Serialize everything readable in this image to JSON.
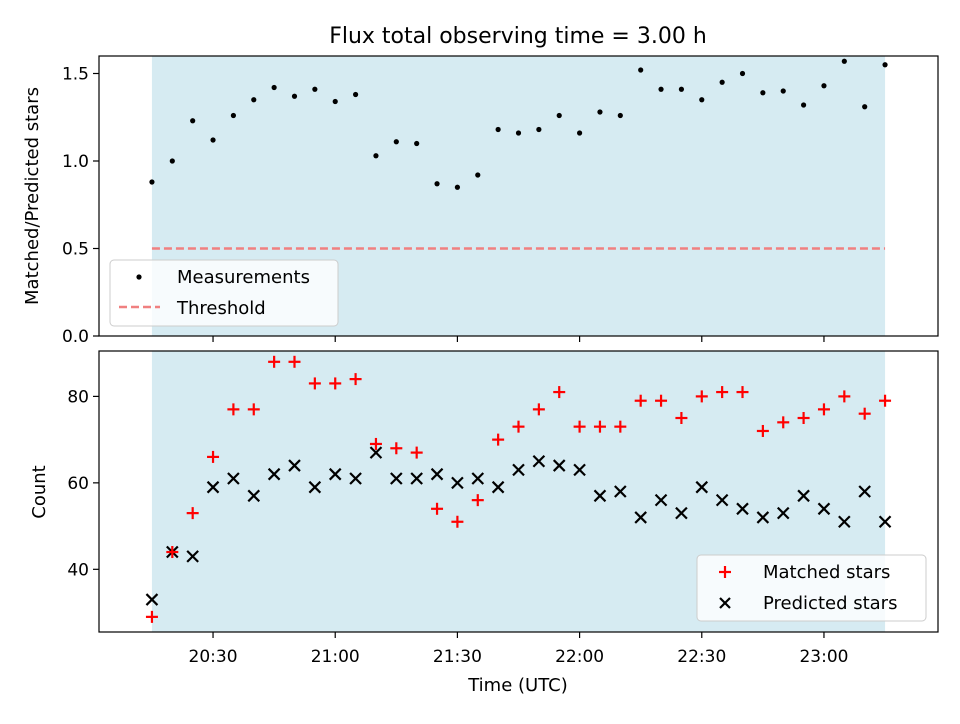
{
  "title": "Flux total observing time = 3.00 h",
  "xlabel": "Time (UTC)",
  "x_ticks": [
    "20:30",
    "21:00",
    "21:30",
    "22:00",
    "22:30",
    "23:00"
  ],
  "colors": {
    "shade": "#add8e6",
    "measurement": "#000000",
    "threshold": "#f08080",
    "matched": "#ff0000",
    "predicted": "#000000"
  },
  "chart_data": [
    {
      "type": "scatter",
      "ylabel": "Matched/Predicted stars",
      "ylim": [
        0.0,
        1.6
      ],
      "y_ticks": [
        "0.0",
        "0.5",
        "1.0",
        "1.5"
      ],
      "x": [
        "20:15",
        "20:20",
        "20:25",
        "20:30",
        "20:35",
        "20:40",
        "20:45",
        "20:50",
        "20:55",
        "21:00",
        "21:05",
        "21:10",
        "21:15",
        "21:20",
        "21:25",
        "21:30",
        "21:35",
        "21:40",
        "21:45",
        "21:50",
        "21:55",
        "22:00",
        "22:05",
        "22:10",
        "22:15",
        "22:20",
        "22:25",
        "22:30",
        "22:35",
        "22:40",
        "22:45",
        "22:50",
        "22:55",
        "23:00",
        "23:05",
        "23:10",
        "23:15"
      ],
      "shaded_interval": [
        "20:15",
        "23:15"
      ],
      "legend_position": "lower-left",
      "series": [
        {
          "name": "Measurements",
          "type": "scatter",
          "values": [
            0.88,
            1.0,
            1.23,
            1.12,
            1.26,
            1.35,
            1.42,
            1.37,
            1.41,
            1.34,
            1.38,
            1.03,
            1.11,
            1.1,
            0.87,
            0.85,
            0.92,
            1.18,
            1.16,
            1.18,
            1.26,
            1.16,
            1.28,
            1.26,
            1.52,
            1.41,
            1.41,
            1.35,
            1.45,
            1.5,
            1.39,
            1.4,
            1.32,
            1.43,
            1.57,
            1.31,
            1.55
          ]
        },
        {
          "name": "Threshold",
          "type": "line",
          "style": "dashed",
          "value": 0.5
        }
      ]
    },
    {
      "type": "scatter",
      "ylabel": "Count",
      "ylim": [
        25.5,
        90.5
      ],
      "y_ticks": [
        "40",
        "60",
        "80"
      ],
      "legend_position": "lower-right",
      "series": [
        {
          "name": "Matched stars",
          "marker": "+",
          "values": [
            29,
            44,
            53,
            66,
            77,
            77,
            88,
            88,
            83,
            83,
            84,
            69,
            68,
            67,
            54,
            51,
            56,
            70,
            73,
            77,
            81,
            73,
            73,
            73,
            79,
            79,
            75,
            80,
            81,
            81,
            72,
            74,
            75,
            77,
            80,
            76,
            79
          ]
        },
        {
          "name": "Predicted stars",
          "marker": "x",
          "values": [
            33,
            44,
            43,
            59,
            61,
            57,
            62,
            64,
            59,
            62,
            61,
            67,
            61,
            61,
            62,
            60,
            61,
            59,
            63,
            65,
            64,
            63,
            57,
            58,
            52,
            56,
            53,
            59,
            56,
            54,
            52,
            53,
            57,
            54,
            51,
            58,
            51
          ]
        }
      ]
    }
  ]
}
